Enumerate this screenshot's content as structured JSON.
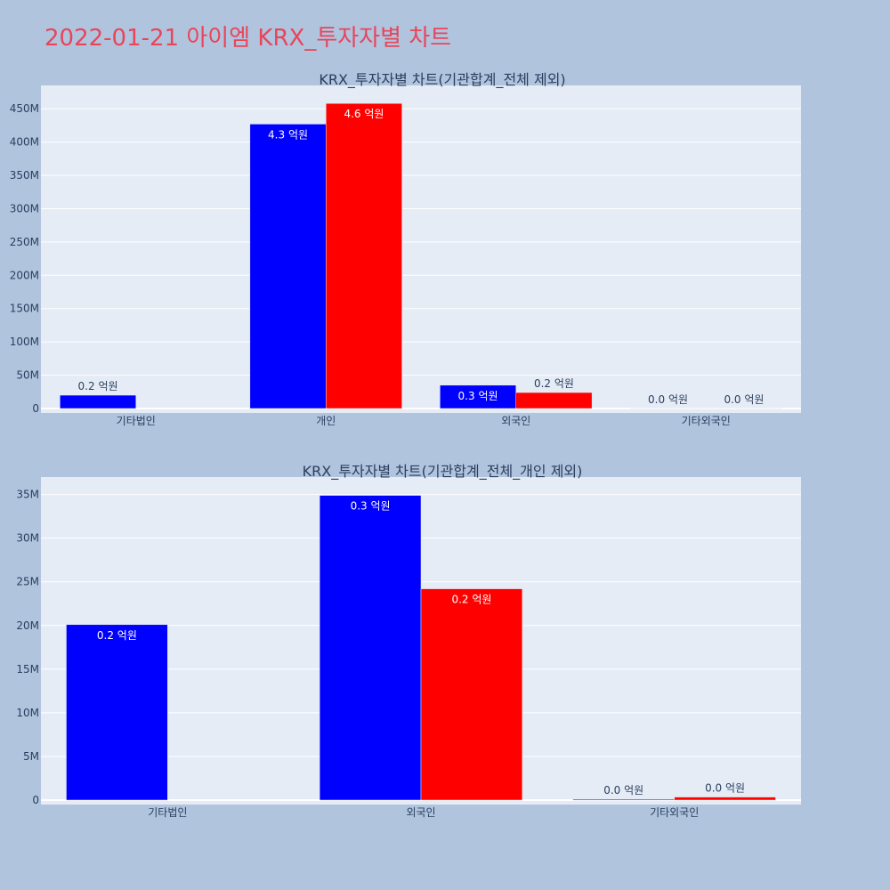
{
  "page": {
    "title": "2022-01-21 아이엠 KRX_투자자별 차트"
  },
  "chart_data": [
    {
      "type": "bar",
      "title": "KRX_투자자별 차트(기관합계_전체 제외)",
      "categories": [
        "기타법인",
        "개인",
        "외국인",
        "기타외국인"
      ],
      "ylim": [
        0,
        485000000
      ],
      "yticks": [
        0,
        50000000,
        100000000,
        150000000,
        200000000,
        250000000,
        300000000,
        350000000,
        400000000,
        450000000
      ],
      "ytick_labels": [
        "0",
        "50M",
        "100M",
        "150M",
        "200M",
        "250M",
        "300M",
        "350M",
        "400M",
        "450M"
      ],
      "grid": true,
      "series": [
        {
          "color": "#0000ff",
          "values": [
            20000000,
            427000000,
            35000000,
            100000
          ],
          "labels": [
            "0.2 억원",
            "4.3 억원",
            "0.3 억원",
            "0.0 억원"
          ]
        },
        {
          "color": "#ff0000",
          "values": [
            0,
            458000000,
            24000000,
            300000
          ],
          "labels": [
            "",
            "4.6 억원",
            "0.2 억원",
            "0.0 억원"
          ]
        }
      ]
    },
    {
      "type": "bar",
      "title": "KRX_투자자별 차트(기관합계_전체_개인 제외)",
      "categories": [
        "기타법인",
        "외국인",
        "기타외국인"
      ],
      "ylim": [
        0,
        37000000
      ],
      "yticks": [
        0,
        5000000,
        10000000,
        15000000,
        20000000,
        25000000,
        30000000,
        35000000
      ],
      "ytick_labels": [
        "0",
        "5M",
        "10M",
        "15M",
        "20M",
        "25M",
        "30M",
        "35M"
      ],
      "grid": true,
      "series": [
        {
          "color": "#0000ff",
          "values": [
            20100000,
            34900000,
            100000
          ],
          "labels": [
            "0.2 억원",
            "0.3 억원",
            "0.0 억원"
          ]
        },
        {
          "color": "#ff0000",
          "values": [
            0,
            24200000,
            350000
          ],
          "labels": [
            "",
            "0.2 억원",
            "0.0 억원"
          ]
        }
      ]
    }
  ]
}
